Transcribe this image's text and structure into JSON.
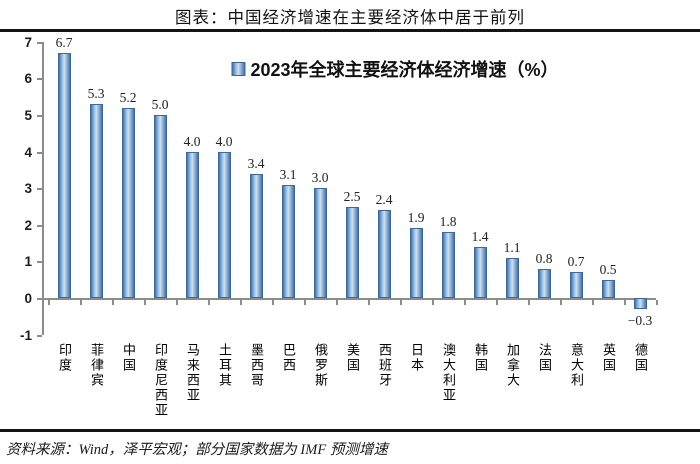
{
  "header": {
    "title": "图表：中国经济增速在主要经济体中居于前列"
  },
  "legend": {
    "label": "2023年全球主要经济体经济增速（%）"
  },
  "footer": {
    "source": "资料来源：Wind，泽平宏观；部分国家数据为 IMF 预测增速"
  },
  "colors": {
    "bar_edge": "#3a689f",
    "bar_mid_light": "#cfe0f0",
    "axis": "#8c8c8c",
    "rule": "#141414",
    "text": "#111111"
  },
  "chart_data": {
    "type": "bar",
    "title": "2023年全球主要经济体经济增速（%）",
    "categories": [
      "印度",
      "菲律宾",
      "中国",
      "印度尼西亚",
      "马来西亚",
      "土耳其",
      "墨西哥",
      "巴西",
      "俄罗斯",
      "美国",
      "西班牙",
      "日本",
      "澳大利亚",
      "韩国",
      "加拿大",
      "法国",
      "意大利",
      "英国",
      "德国"
    ],
    "values": [
      6.7,
      5.3,
      5.2,
      5.0,
      4.0,
      4.0,
      3.4,
      3.1,
      3.0,
      2.5,
      2.4,
      1.9,
      1.8,
      1.4,
      1.1,
      0.8,
      0.7,
      0.5,
      -0.3
    ],
    "labels": [
      "6.7",
      "5.3",
      "5.2",
      "5.0",
      "4.0",
      "4.0",
      "3.4",
      "3.1",
      "3.0",
      "2.5",
      "2.4",
      "1.9",
      "1.8",
      "1.4",
      "1.1",
      "0.8",
      "0.7",
      "0.5",
      "−0.3"
    ],
    "xlabel": "",
    "ylabel": "",
    "ylim": [
      -1,
      7
    ],
    "y_ticks": [
      7,
      6,
      5,
      4,
      3,
      2,
      1,
      0,
      -1
    ],
    "grid": false,
    "legend_position": "top-center",
    "data_labels": true
  }
}
